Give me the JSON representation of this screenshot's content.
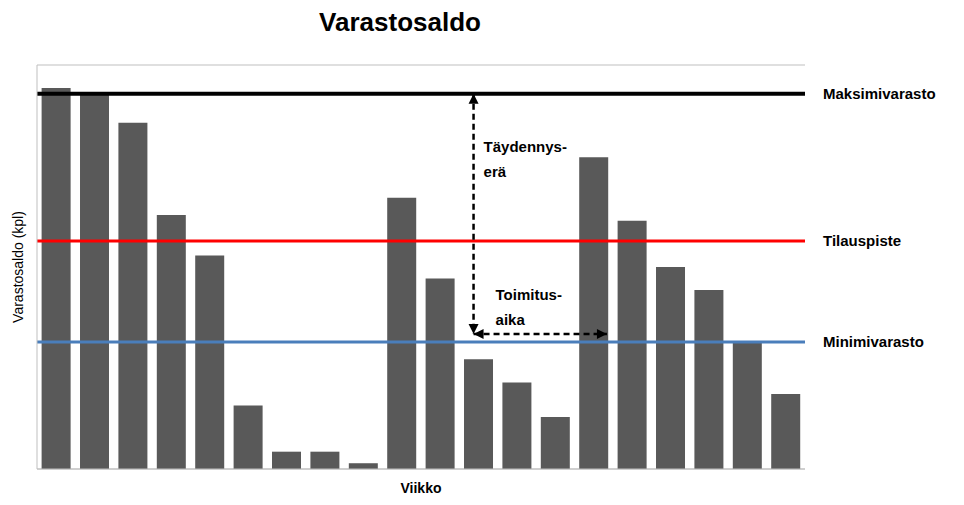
{
  "chart_data": {
    "type": "bar",
    "title": "Varastosaldo",
    "x_label": "Viikko",
    "y_label": "Varastosaldo (kpl)",
    "categories": [
      null,
      null,
      null,
      null,
      null,
      null,
      null,
      null,
      null,
      null,
      null,
      null,
      null,
      null,
      null,
      null,
      null,
      null,
      null,
      null
    ],
    "values": [
      66,
      65,
      60,
      44,
      37,
      11,
      3,
      3,
      1,
      47,
      33,
      19,
      15,
      9,
      54,
      43,
      35,
      31,
      22,
      13
    ],
    "color": "#595959",
    "ylim": [
      0,
      70
    ],
    "yticks": [
      0,
      10,
      20,
      30,
      40,
      50,
      60,
      70
    ],
    "grid": true,
    "tick_labels": false,
    "reference_lines": [
      {
        "label": "Maksimivarasto",
        "value": 65,
        "color": "#000000"
      },
      {
        "label": "Tilauspiste",
        "value": 39.5,
        "color": "#ff0000"
      },
      {
        "label": "Minimivarasto",
        "value": 22,
        "color": "#4a7ebb"
      }
    ],
    "annotations": [
      {
        "text": "Täydennys-erä"
      },
      {
        "text": "Toimitus-aika"
      }
    ]
  }
}
